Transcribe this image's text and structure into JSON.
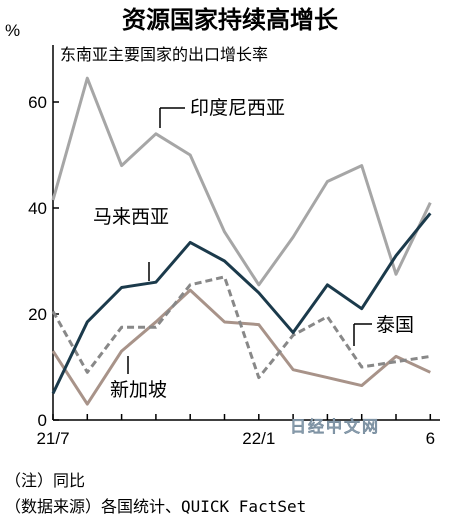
{
  "chart_data": {
    "type": "line",
    "title": "资源国家持续高增长",
    "subtitle": "东南亚主要国家的出口增长率",
    "y_unit": "%",
    "ylim": [
      0,
      70
    ],
    "y_ticks": [
      0,
      20,
      40,
      60
    ],
    "grid": false,
    "x": [
      "2021-07",
      "2021-08",
      "2021-09",
      "2021-10",
      "2021-11",
      "2021-12",
      "2022-01",
      "2022-02",
      "2022-03",
      "2022-04",
      "2022-05",
      "2022-06"
    ],
    "x_tick_labels": [
      {
        "x": "2021-07",
        "label": "21/7"
      },
      {
        "x": "2022-01",
        "label": "22/1"
      },
      {
        "x": "2022-06",
        "label": "6"
      }
    ],
    "series": [
      {
        "name": "印度尼西亚",
        "color": "#a6a6a6",
        "dash": "solid",
        "values": [
          41.5,
          64.5,
          48,
          54,
          50,
          35.5,
          25.5,
          34.5,
          45,
          48,
          27.5,
          41
        ]
      },
      {
        "name": "马来西亚",
        "color": "#1b3a4b",
        "dash": "solid",
        "values": [
          5,
          18.5,
          25,
          26,
          33.5,
          30,
          24,
          16.5,
          25.5,
          21,
          31,
          39
        ]
      },
      {
        "name": "泰国",
        "color": "#888888",
        "dash": "dashed",
        "values": [
          20.5,
          9,
          17.5,
          17.5,
          25.5,
          27,
          8,
          16,
          19.5,
          10,
          11,
          12
        ]
      },
      {
        "name": "新加坡",
        "color": "#a89389",
        "dash": "solid",
        "values": [
          13,
          3,
          13,
          18.5,
          24.5,
          18.5,
          18,
          9.5,
          8,
          6.5,
          12,
          9
        ]
      }
    ],
    "notes": [
      "（注）同比",
      "（数据来源）各国统计、QUICK FactSet"
    ],
    "watermark": "日经中文网"
  }
}
